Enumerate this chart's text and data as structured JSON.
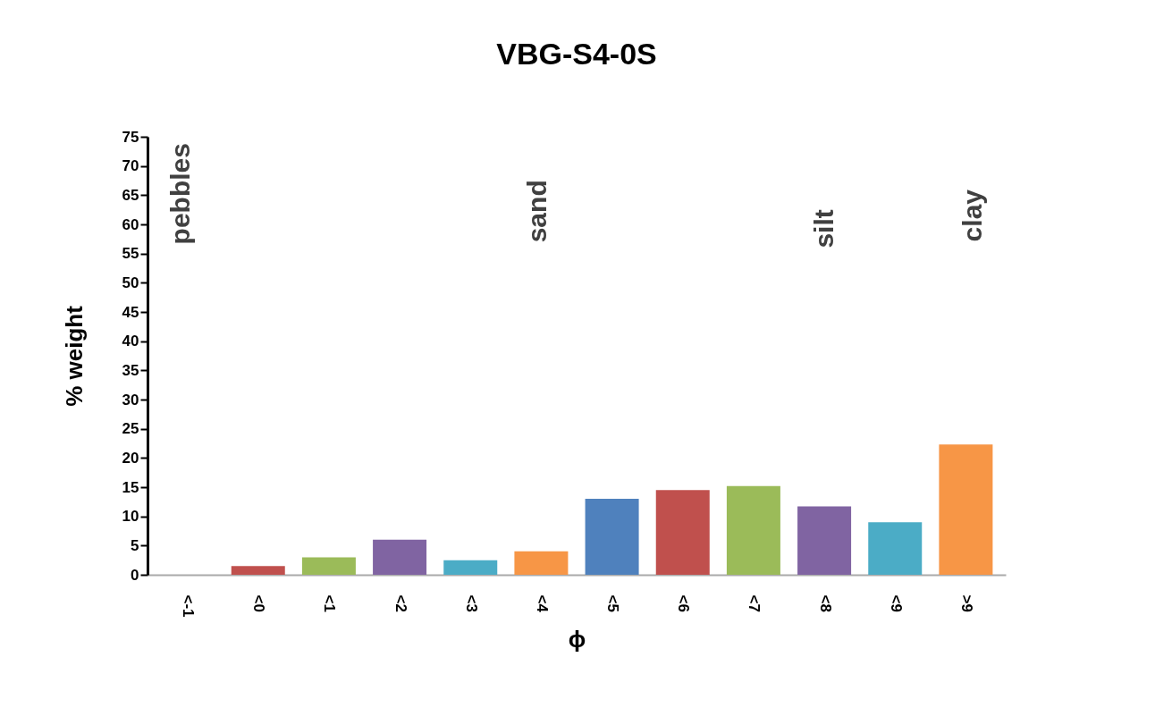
{
  "chart_data": {
    "type": "bar",
    "title": "VBG-S4-0S",
    "xlabel": "ϕ",
    "ylabel": "% weight",
    "categories": [
      "<-1",
      "<0",
      "<1",
      "<2",
      "<3",
      "<4",
      "<5",
      "<6",
      "<7",
      "<8",
      "<9",
      ">9"
    ],
    "values": [
      0,
      1.5,
      3,
      6,
      2.5,
      4,
      13,
      14.5,
      15.2,
      11.7,
      9,
      22.3
    ],
    "colors": [
      "#4f81bd",
      "#c0504d",
      "#9bbb59",
      "#8064a2",
      "#4bacc6",
      "#f79646",
      "#4f81bd",
      "#c0504d",
      "#9bbb59",
      "#8064a2",
      "#4bacc6",
      "#f79646"
    ],
    "ylim": [
      0,
      75
    ],
    "yticks": [
      0,
      5,
      10,
      15,
      20,
      25,
      30,
      35,
      40,
      45,
      50,
      55,
      60,
      65,
      70,
      75
    ],
    "grid": false,
    "annotations": [
      "pebbles",
      "sand",
      "silt",
      "clay"
    ]
  }
}
